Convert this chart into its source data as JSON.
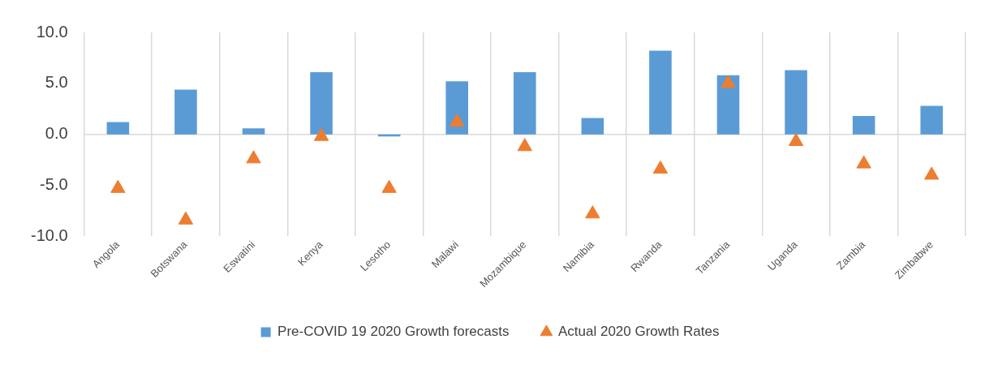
{
  "chart_data": {
    "type": "bar",
    "categories": [
      "Angola",
      "Botswana",
      "Eswatini",
      "Kenya",
      "Lesotho",
      "Malawi",
      "Mozambique",
      "Namibia",
      "Rwanda",
      "Tanzania",
      "Uganda",
      "Zambia",
      "Zimbabwe"
    ],
    "series": [
      {
        "name": "Pre-COVID 19 2020 Growth forecasts",
        "color": "#5b9bd5",
        "values": [
          1.2,
          4.4,
          0.6,
          6.1,
          -0.2,
          5.2,
          6.1,
          1.6,
          8.2,
          5.8,
          6.3,
          1.8,
          2.8
        ]
      },
      {
        "name": "Actual 2020 Growth Rates",
        "type": "scatter",
        "marker": "triangle",
        "color": "#ed7d31",
        "values": [
          -5.3,
          -8.4,
          -2.4,
          -0.2,
          -5.3,
          1.2,
          -1.2,
          -7.8,
          -3.4,
          5.0,
          -0.7,
          -2.9,
          -4.0
        ]
      }
    ],
    "ylim": [
      -10,
      10
    ],
    "yticks": [
      {
        "value": -10,
        "label": "-10.0"
      },
      {
        "value": -5,
        "label": "-5.0"
      },
      {
        "value": 0,
        "label": "0.0"
      },
      {
        "value": 5,
        "label": "5.0"
      },
      {
        "value": 10,
        "label": "10.0"
      }
    ],
    "ref_lines": [
      {
        "axis": "y",
        "value": 0,
        "color": "#d9d9d9"
      }
    ],
    "grid": "x",
    "legend": "bottom"
  }
}
